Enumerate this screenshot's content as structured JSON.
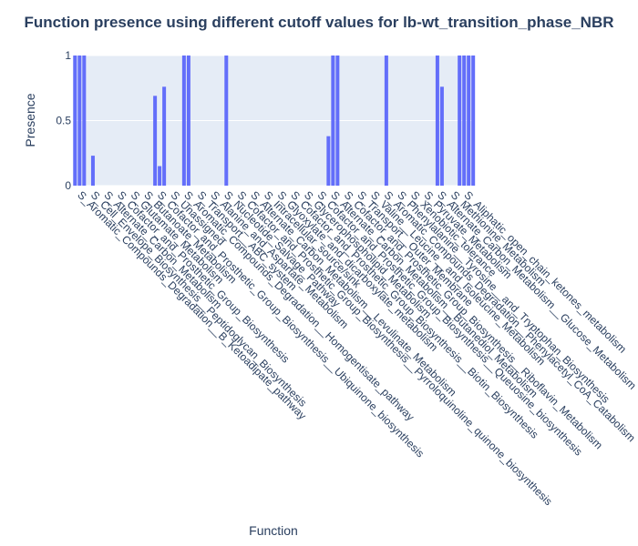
{
  "chart_data": {
    "type": "bar",
    "title": "Function presence using different cutoff values for lb-wt_transition_phase_NBR",
    "xlabel": "Function",
    "ylabel": "Presence",
    "ylim": [
      0,
      1
    ],
    "yticks": [
      0,
      0.5,
      1
    ],
    "ytick_labels": [
      "0",
      "0.5",
      "1"
    ],
    "grid": true,
    "bar_color": "#636efa",
    "plot_bg": "#e5ecf6",
    "categories": [
      "S_Aromatic_Compounds_Degradation__B_Ketoadipate_pathway",
      "S_Cell_Envelope_Biosynthesis__Peptidoglycan_Biosynthesis",
      "S_Alternate_Carbon_Metabolism",
      "S_Cofactor_and_Prosthetic_Group_Biosynthesis",
      "S_Glutamate_Metabolism",
      "S_Butanoate_Metabolism",
      "S_Cofactor_and_Prosthetic_Group_Biosynthesis__Ubiquinone_biosynthesis",
      "S_Unassigned",
      "S_Aromatic_Compounds_Degradation__Homogentisate_pathway",
      "S_Transport__ABC_system",
      "S_Alanine_and_Aspartate_Metabolism",
      "S_Nucleotide_Salvage_Pathway",
      "S_Cofactor_and_Prosthetic_Group_Biosynthesis__Pyrroloquinoline_quinone_biosynthesis",
      "S_Alternate_Carbon_Metabolism__Levulinate_Metabolism",
      "S_Intracellular_source/sink",
      "S_Glyoxylate_and_dicarboxylate_metabolism",
      "S_Cofactor_and_Prosthetic_Group_Biosynthesis__Biotin_Biosynthesis",
      "S_Glycerophospholipid_Metabolism",
      "S_Cofactor_and_Prosthetic_Group_Biosynthesis__Queuosine_biosynthesis",
      "S_Alternate_Carbon_Metabolism__Butanediol_Metabolism",
      "S_Cofactor_and_Prosthetic_Group_Biosynthesis__Riboflavin_Metabolism",
      "S_Transport__Outer_Membrane",
      "S_Valine__Leucine__and_Isoleucine_Metabolism",
      "S_Aromatic_Compounds_Degradation__Phenylacetyl_CoA_Catabolism",
      "S_Phenylalanine__Tyrosine__and_Tryptophan_Biosynthesis",
      "S_Xenobiotic_tolerance",
      "S_Pyruvate_Metabolism",
      "S_Alternate_Carbon_Metabolism__Glucose_Metabolism",
      "S_Methionine_Metabolism",
      "S_Aliphatic_open_chain_ketones_metabolism"
    ],
    "tick_labels": [
      "S_Aromatic_Compounds_Degradation__B_Ketoadipate_pathway",
      "S_Cell_Envelope_Biosynthesis__Peptidoglycan_Biosynthesis",
      "S_Alternate_Carbon_Metabolism",
      "S_Cofactor_and_Prosthetic_Group_Biosynthesis",
      "S_Glutamate_Metabolism",
      "S_Butanoate_Metabolism",
      "S_Cofactor_and_Prosthetic_Group_Biosynthesis__Ubiquinone_biosynthesis",
      "S_Unassigned",
      "S_Aromatic_Compounds_Degradation__Homogentisate_pathway",
      "S_Transport__ABC_system",
      "S_Alanine_and_Aspartate_Metabolism",
      "S_Nucleotide_Salvage_Pathway",
      "S_Cofactor_and_Prosthetic_Group_Biosynthesis__Pyrroloquinoline_quinone_biosynthesis",
      "S_Alternate_Carbon_Metabolism__Levulinate_Metabolism",
      "S_Intracellular_source/sink",
      "S_Glyoxylate_and_dicarboxylate_metabolism",
      "S_Cofactor_and_Prosthetic_Group_Biosynthesis__Biotin_Biosynthesis",
      "S_Glycerophospholipid_Metabolism",
      "S_Cofactor_and_Prosthetic_Group_Biosynthesis__Queuosine_biosynthesis",
      "S_Alternate_Carbon_Metabolism__Butanediol_Metabolism",
      "S_Cofactor_and_Prosthetic_Group_Biosynthesis__Riboflavin_Metabolism",
      "S_Transport__Outer_Membrane",
      "S_Valine__Leucine__and_Isoleucine_Metabolism",
      "S_Aromatic_Compounds_Degradation__Phenylacetyl_CoA_Catabolism",
      "S_Phenylalanine__Tyrosine__and_Tryptophan_Biosynthesis",
      "S_Xenobiotic_tolerance",
      "S_Pyruvate_Metabolism",
      "S_Alternate_Carbon_Metabolism__Glucose_Metabolism",
      "S_Methionine_Metabolism",
      "S_Aliphatic_open_chain_ketones_metabolism"
    ],
    "bars": [
      {
        "category_index": 0,
        "values": [
          1,
          1,
          1
        ]
      },
      {
        "category_index": 1,
        "values": [
          0.23
        ]
      },
      {
        "category_index": 6,
        "values": [
          0.69,
          0.15,
          0.76
        ]
      },
      {
        "category_index": 8,
        "values": [
          1,
          1
        ]
      },
      {
        "category_index": 11,
        "values": [
          1
        ]
      },
      {
        "category_index": 19,
        "values": [
          0.38,
          1,
          1
        ]
      },
      {
        "category_index": 23,
        "values": [
          1
        ]
      },
      {
        "category_index": 27,
        "values": [
          1,
          0.76
        ]
      },
      {
        "category_index": 29,
        "values": [
          1,
          1,
          1,
          1
        ]
      }
    ]
  }
}
